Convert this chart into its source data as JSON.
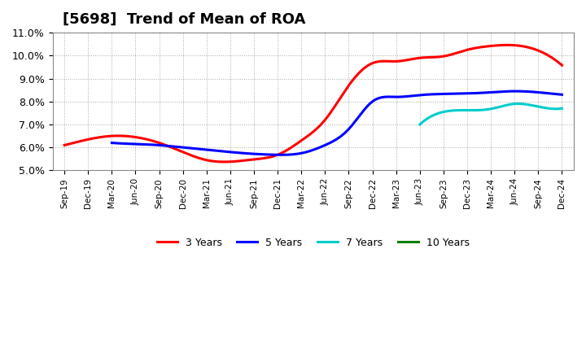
{
  "title": "[5698]  Trend of Mean of ROA",
  "ylim": [
    0.05,
    0.11
  ],
  "yticks": [
    0.05,
    0.06,
    0.07,
    0.08,
    0.09,
    0.1,
    0.11
  ],
  "ytick_labels": [
    "5.0%",
    "6.0%",
    "7.0%",
    "8.0%",
    "9.0%",
    "10.0%",
    "11.0%"
  ],
  "x_labels": [
    "Sep-19",
    "Dec-19",
    "Mar-20",
    "Jun-20",
    "Sep-20",
    "Dec-20",
    "Mar-21",
    "Jun-21",
    "Sep-21",
    "Dec-21",
    "Mar-22",
    "Jun-22",
    "Sep-22",
    "Dec-22",
    "Mar-23",
    "Jun-23",
    "Sep-23",
    "Dec-23",
    "Mar-24",
    "Jun-24",
    "Sep-24",
    "Dec-24"
  ],
  "series": {
    "3 Years": {
      "color": "#FF0000",
      "data": [
        0.061,
        0.0635,
        0.065,
        0.0645,
        0.062,
        0.058,
        0.0545,
        0.0538,
        0.0548,
        0.0568,
        0.063,
        0.072,
        0.087,
        0.0967,
        0.0975,
        0.099,
        0.0997,
        0.1025,
        0.1042,
        0.1045,
        0.1022,
        0.0958
      ]
    },
    "5 Years": {
      "color": "#0000FF",
      "data": [
        null,
        null,
        0.062,
        0.0615,
        0.061,
        0.06,
        0.059,
        0.058,
        0.0572,
        0.0568,
        0.0575,
        0.061,
        0.068,
        0.08,
        0.082,
        0.0828,
        0.0833,
        0.0835,
        0.084,
        0.0845,
        0.084,
        0.083
      ]
    },
    "7 Years": {
      "color": "#00CCCC",
      "data": [
        null,
        null,
        null,
        null,
        null,
        null,
        null,
        null,
        null,
        null,
        null,
        null,
        null,
        null,
        null,
        0.07,
        0.0755,
        0.0762,
        0.0768,
        0.079,
        0.0778,
        0.077
      ]
    },
    "10 Years": {
      "color": "#008000",
      "data": [
        null,
        null,
        null,
        null,
        null,
        null,
        null,
        null,
        null,
        null,
        null,
        null,
        null,
        null,
        null,
        null,
        null,
        null,
        null,
        null,
        null,
        null
      ]
    }
  },
  "background_color": "#FFFFFF",
  "plot_background": "#FFFFFF",
  "grid_color": "#AAAAAA",
  "title_fontsize": 13,
  "linewidth": 2.2
}
